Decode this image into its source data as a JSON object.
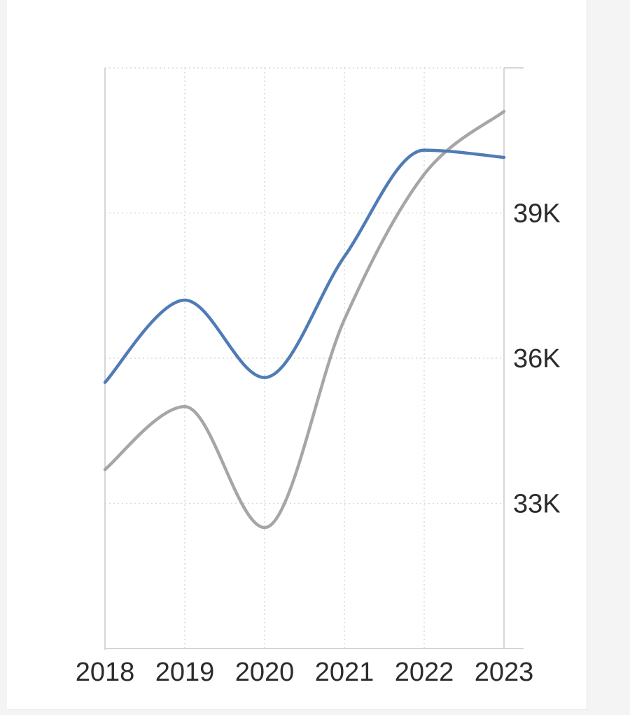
{
  "chart_data": {
    "type": "line",
    "title": "",
    "xlabel": "",
    "ylabel": "",
    "x": [
      "2018",
      "2019",
      "2020",
      "2021",
      "2022",
      "2023"
    ],
    "ylim": [
      30000,
      42000
    ],
    "yticks": [
      33000,
      36000,
      39000
    ],
    "ytick_labels": [
      "33K",
      "36K",
      "39K"
    ],
    "y_axis_position": "right",
    "grid": true,
    "legend": "none",
    "series": [
      {
        "color": "#4f7cb6",
        "values": [
          35500,
          37200,
          35600,
          38100,
          40300,
          40150
        ]
      },
      {
        "color": "#a6a6a6",
        "values": [
          33700,
          35000,
          32500,
          36800,
          39800,
          41100
        ]
      }
    ]
  }
}
